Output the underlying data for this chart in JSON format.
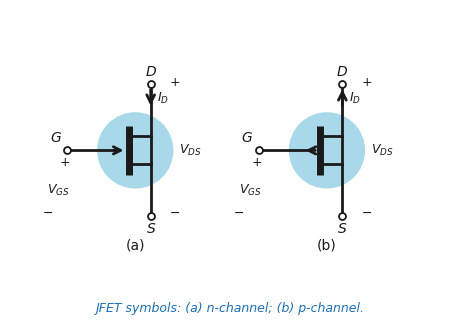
{
  "bg_color": "#ffffff",
  "circle_color": "#a8d8ea",
  "line_color": "#1a1a1a",
  "label_color": "#1e6eb5",
  "figsize": [
    4.6,
    3.36
  ],
  "dpi": 100,
  "caption": "JFET symbols: (a) n-channel; (b) p-channel.",
  "label_a": "(a)",
  "label_b": "(b)"
}
